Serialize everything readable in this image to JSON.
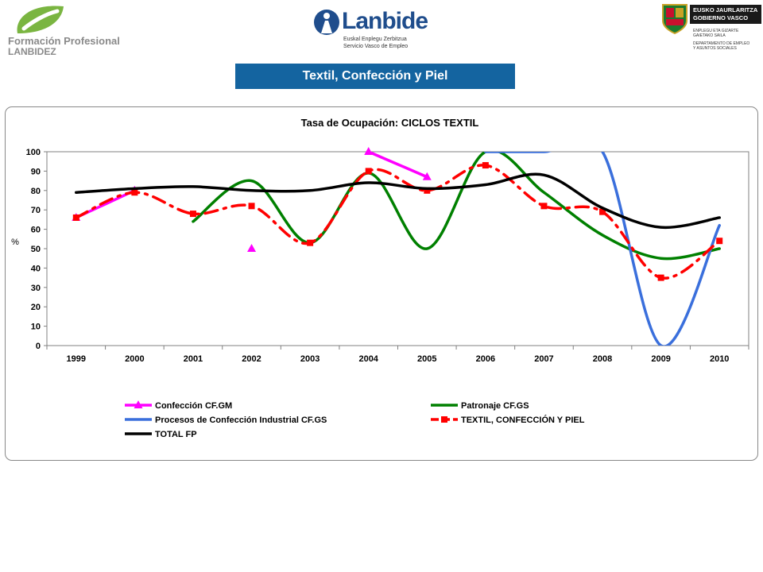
{
  "header": {
    "fp_logo_line1": "Formación Profesional",
    "fp_logo_line2": "LANBIDEZ",
    "lanbide_name": "Lanbide",
    "lanbide_sub1": "Euskal Enplegu Zerbitzua",
    "lanbide_sub2": "Servicio Vasco de Empleo",
    "gv_line1": "EUSKO JAURLARITZA",
    "gv_line2": "GOBIERNO VASCO",
    "gv_dept1": "ENPLEGU ETA GIZARTE",
    "gv_dept2": "GAIETAKO SAILA",
    "gv_dept3": "DEPARTAMENTO DE EMPLEO",
    "gv_dept4": "Y ASUNTOS SOCIALES"
  },
  "page_title": "Textil, Confección y Piel",
  "colors": {
    "title_bar": "#1464a0",
    "magenta": "#ff00ff",
    "green": "#008000",
    "blue": "#3a6fdc",
    "red": "#ff0000",
    "black": "#000000"
  },
  "chart_data": {
    "type": "line",
    "title": "Tasa de Ocupación: CICLOS TEXTIL",
    "ylabel": "%",
    "xlabel": "",
    "ylim": [
      0,
      100
    ],
    "yticks": [
      0,
      10,
      20,
      30,
      40,
      50,
      60,
      70,
      80,
      90,
      100
    ],
    "categories": [
      "1999",
      "2000",
      "2001",
      "2002",
      "2003",
      "2004",
      "2005",
      "2006",
      "2007",
      "2008",
      "2009",
      "2010"
    ],
    "legend_position": "bottom",
    "series": [
      {
        "name": "Confección CF.GM",
        "color": "#ff00ff",
        "style": "solid",
        "marker": "triangle",
        "values": [
          66,
          80,
          null,
          50,
          null,
          100,
          87,
          null,
          null,
          null,
          null,
          null
        ]
      },
      {
        "name": "Patronaje CF.GS",
        "color": "#008000",
        "style": "solid",
        "marker": "none",
        "values": [
          null,
          null,
          64,
          85,
          53,
          89,
          50,
          100,
          79,
          57,
          45,
          50
        ]
      },
      {
        "name": "Procesos de Confección Industrial CF.GS",
        "color": "#3a6fdc",
        "style": "solid",
        "marker": "none",
        "values": [
          null,
          null,
          null,
          null,
          null,
          null,
          null,
          100,
          100,
          100,
          0,
          62
        ]
      },
      {
        "name": "TEXTIL, CONFECCIÓN Y PIEL",
        "color": "#ff0000",
        "style": "dashdot",
        "marker": "square",
        "values": [
          66,
          79,
          68,
          72,
          53,
          90,
          80,
          93,
          72,
          69,
          35,
          54
        ]
      },
      {
        "name": "TOTAL FP",
        "color": "#000000",
        "style": "solid",
        "marker": "none",
        "values": [
          79,
          81,
          82,
          80,
          80,
          84,
          81,
          83,
          88,
          71,
          61,
          66
        ]
      }
    ]
  }
}
